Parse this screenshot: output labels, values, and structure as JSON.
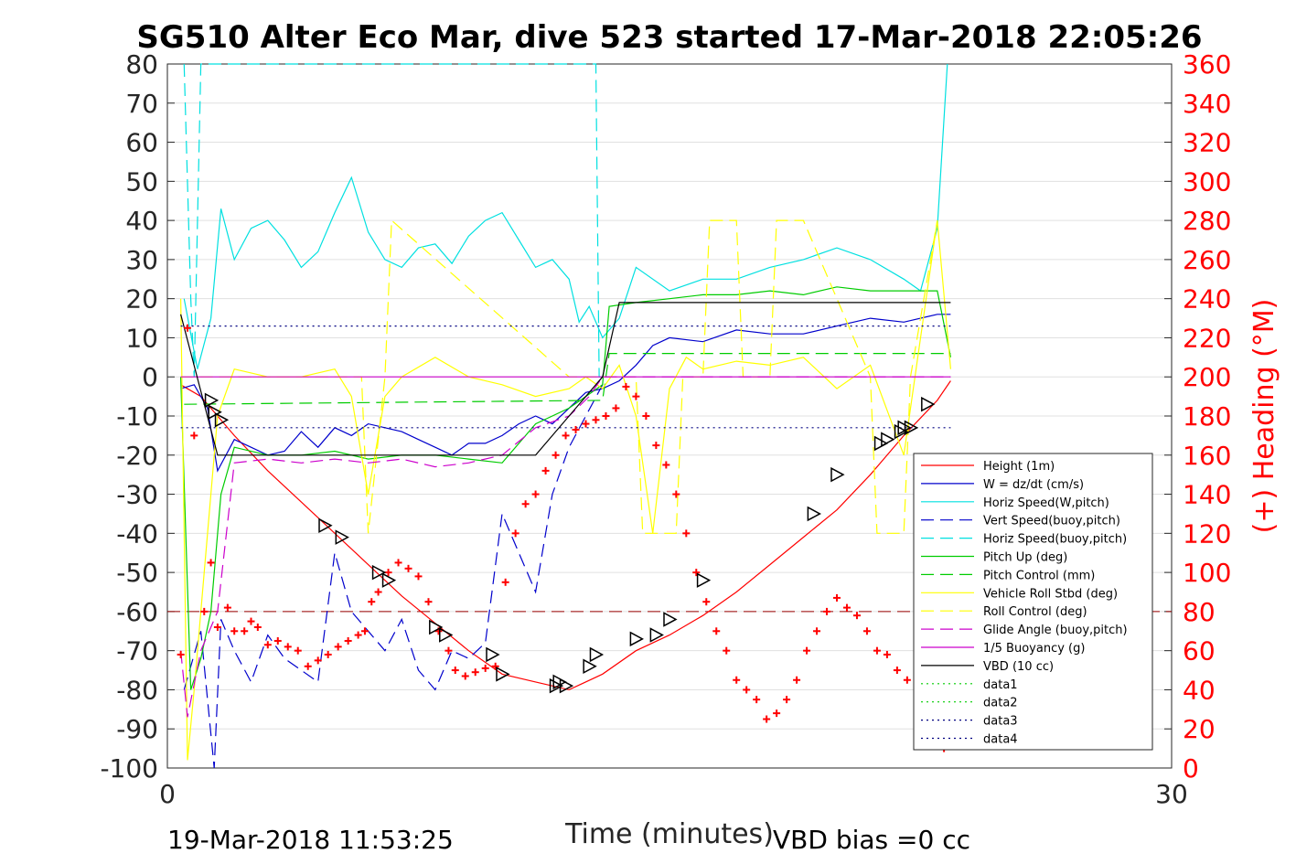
{
  "chart_data": {
    "type": "line",
    "title": "SG510 Alter Eco Mar, dive 523 started 17-Mar-2018 22:05:26",
    "xlabel": "Time (minutes)",
    "ylabel": "",
    "ylabel_right": "(+) Heading (°M)",
    "xlim": [
      0,
      30
    ],
    "ylim": [
      -100,
      80
    ],
    "ylim_right": [
      0,
      360
    ],
    "x_ticks": [
      "0",
      "30"
    ],
    "y_ticks": [
      "80",
      "70",
      "60",
      "50",
      "40",
      "30",
      "20",
      "10",
      "0",
      "-10",
      "-20",
      "-30",
      "-40",
      "-50",
      "-60",
      "-70",
      "-80",
      "-90",
      "-100"
    ],
    "y_ticks_right": [
      "360",
      "340",
      "320",
      "300",
      "280",
      "260",
      "240",
      "220",
      "200",
      "180",
      "160",
      "140",
      "120",
      "100",
      "80",
      "60",
      "40",
      "20",
      "0"
    ],
    "grid": "horizontal",
    "legend_position": "lower-right",
    "footer_left": "19-Mar-2018 11:53:25",
    "footer_right": "VBD bias =0 cc",
    "colors": {
      "height": "#ff0000",
      "w": "#0000cc",
      "horiz": "#00e0e0",
      "pitch": "#00cc00",
      "roll": "#ffff00",
      "glide": "#cc00cc",
      "vbd": "#000000",
      "heading": "#ff0000",
      "grid": "#e0e0e0"
    },
    "series": [
      {
        "name": "Height (1m)",
        "color": "#ff0000",
        "style": "solid",
        "x": [
          0.4,
          1.0,
          1.5,
          2.0,
          3.0,
          4.0,
          5.0,
          6.0,
          7.0,
          8.0,
          9.0,
          10.0,
          11.0,
          12.0,
          13.0,
          14.0,
          15.0,
          16.0,
          17.0,
          18.0,
          19.0,
          20.0,
          21.0,
          22.0,
          23.0,
          23.4
        ],
        "y": [
          -2,
          -5,
          -10,
          -15,
          -24,
          -32,
          -40,
          -48,
          -56,
          -63,
          -70,
          -76,
          -78,
          -80,
          -76,
          -70,
          -66,
          -61,
          -55,
          -48,
          -41,
          -34,
          -25,
          -15,
          -6,
          -1
        ]
      },
      {
        "name": "W = dz/dt (cm/s)",
        "color": "#0000cc",
        "style": "solid",
        "x": [
          0.4,
          0.8,
          1.2,
          1.5,
          2.0,
          2.5,
          3.0,
          3.5,
          4.0,
          4.5,
          5.0,
          5.5,
          6.0,
          6.5,
          7.0,
          7.5,
          8.0,
          8.5,
          9.0,
          9.5,
          10.0,
          10.5,
          11.0,
          11.5,
          12.0,
          12.5,
          13.0,
          13.5,
          14.0,
          14.5,
          15.0,
          16.0,
          17.0,
          18.0,
          19.0,
          20.0,
          21.0,
          22.0,
          23.0,
          23.4
        ],
        "y": [
          -3,
          -2,
          -8,
          -24,
          -16,
          -18,
          -20,
          -19,
          -14,
          -18,
          -13,
          -15,
          -12,
          -13,
          -14,
          -16,
          -18,
          -20,
          -17,
          -17,
          -15,
          -12,
          -10,
          -12,
          -8,
          -4,
          -3,
          -1,
          3,
          8,
          10,
          9,
          12,
          11,
          11,
          13,
          15,
          14,
          16,
          16
        ]
      },
      {
        "name": "Horiz Speed(W,pitch)",
        "color": "#00e0e0",
        "style": "solid",
        "x": [
          0.5,
          0.9,
          1.3,
          1.6,
          2.0,
          2.5,
          3.0,
          3.5,
          4.0,
          4.5,
          5.0,
          5.5,
          6.0,
          6.5,
          7.0,
          7.5,
          8.0,
          8.5,
          9.0,
          9.5,
          10.0,
          10.5,
          11.0,
          11.5,
          12.0,
          12.3,
          12.6,
          13.0,
          13.5,
          14.0,
          15.0,
          16.0,
          17.0,
          18.0,
          19.0,
          20.0,
          21.0,
          22.0,
          22.5,
          23.0,
          23.3
        ],
        "y": [
          20,
          2,
          15,
          43,
          30,
          38,
          40,
          35,
          28,
          32,
          42,
          51,
          37,
          30,
          28,
          33,
          34,
          29,
          36,
          40,
          42,
          35,
          28,
          30,
          25,
          14,
          18,
          10,
          15,
          28,
          22,
          25,
          25,
          28,
          30,
          33,
          30,
          25,
          22,
          38,
          80
        ]
      },
      {
        "name": "Vert Speed(buoy,pitch)",
        "color": "#0000cc",
        "style": "dashed",
        "x": [
          0.5,
          1.0,
          1.4,
          1.6,
          2.0,
          2.5,
          3.0,
          3.5,
          4.0,
          4.5,
          5.0,
          5.5,
          6.0,
          6.5,
          7.0,
          7.5,
          8.0,
          8.5,
          9.0,
          9.5,
          10.0,
          10.5,
          11.0,
          11.5,
          12.0,
          12.5,
          13.0
        ],
        "y": [
          -80,
          -65,
          -100,
          -62,
          -70,
          -78,
          -66,
          -72,
          -75,
          -78,
          -45,
          -60,
          -65,
          -70,
          -62,
          -75,
          -80,
          -70,
          -72,
          -68,
          -35,
          -45,
          -55,
          -30,
          -18,
          -10,
          -2
        ]
      },
      {
        "name": "Horiz Speed(buoy,pitch)",
        "color": "#00e0e0",
        "style": "dashed",
        "x": [
          0.5,
          0.7,
          0.8,
          1.0,
          12.8,
          12.9,
          13.0
        ],
        "y": [
          80,
          20,
          0,
          80,
          80,
          0,
          0
        ]
      },
      {
        "name": "Pitch Up (deg)",
        "color": "#00cc00",
        "style": "solid",
        "x": [
          0.4,
          0.7,
          1.0,
          1.3,
          1.6,
          2.0,
          3.0,
          4.0,
          5.0,
          6.0,
          7.0,
          8.0,
          9.0,
          10.0,
          11.0,
          12.0,
          12.5,
          13.0,
          13.2,
          14.0,
          15.0,
          16.0,
          17.0,
          18.0,
          19.0,
          20.0,
          21.0,
          22.0,
          23.0,
          23.4
        ],
        "y": [
          0,
          -80,
          -72,
          -60,
          -30,
          -18,
          -20,
          -20,
          -19,
          -21,
          -20,
          -20,
          -21,
          -22,
          -12,
          -8,
          -5,
          -2,
          18,
          19,
          20,
          21,
          21,
          22,
          21,
          23,
          22,
          22,
          22,
          5
        ]
      },
      {
        "name": "Pitch Control (mm)",
        "color": "#00cc00",
        "style": "dashed",
        "x": [
          0.5,
          13.0,
          13.2,
          23.4
        ],
        "y": [
          -7,
          -6,
          6,
          6
        ]
      },
      {
        "name": "Vehicle Roll Stbd (deg)",
        "color": "#ffff00",
        "style": "solid",
        "x": [
          0.4,
          0.6,
          0.8,
          1.0,
          1.5,
          2.0,
          3.0,
          4.0,
          5.0,
          5.5,
          6.0,
          6.5,
          7.0,
          8.0,
          9.0,
          10.0,
          11.0,
          12.0,
          12.5,
          13.0,
          13.5,
          14.0,
          14.5,
          15.0,
          15.5,
          16.0,
          17.0,
          18.0,
          19.0,
          20.0,
          21.0,
          22.0,
          23.0,
          23.4
        ],
        "y": [
          20,
          -98,
          -80,
          -60,
          -10,
          2,
          0,
          0,
          2,
          -5,
          -30,
          -5,
          0,
          5,
          0,
          -2,
          -5,
          -3,
          0,
          -3,
          3,
          -10,
          -40,
          -3,
          5,
          2,
          4,
          3,
          5,
          -3,
          3,
          -20,
          40,
          2
        ]
      },
      {
        "name": "Roll Control (deg)",
        "color": "#ffff00",
        "style": "dashed",
        "x": [
          0.4,
          5.8,
          6.0,
          6.5,
          6.7,
          12.0,
          14.0,
          14.2,
          15.2,
          15.4,
          16.0,
          16.2,
          17.0,
          17.2,
          18.0,
          18.2,
          19.0,
          21.0,
          21.2,
          22.0,
          22.2,
          23.0
        ],
        "y": [
          0,
          0,
          -40,
          0,
          40,
          0,
          0,
          -40,
          -40,
          0,
          0,
          40,
          40,
          0,
          0,
          40,
          40,
          0,
          -40,
          -40,
          0,
          40
        ]
      },
      {
        "name": "Glide Angle (buoy,pitch)",
        "color": "#cc00cc",
        "style": "dashed",
        "x": [
          0.4,
          0.6,
          1.0,
          1.5,
          2.0,
          3.0,
          4.0,
          5.0,
          6.0,
          7.0,
          8.0,
          9.0,
          10.0,
          11.0,
          12.0,
          12.6,
          13.0,
          23.4
        ],
        "y": [
          -70,
          -87,
          -70,
          -60,
          -22,
          -21,
          -22,
          -21,
          -22,
          -21,
          -23,
          -22,
          -20,
          -13,
          -10,
          -5,
          0,
          0
        ]
      },
      {
        "name": "1/5 Buoyancy (g)",
        "color": "#cc00cc",
        "style": "solid",
        "x": [
          0.4,
          13.0,
          23.4
        ],
        "y": [
          0,
          0,
          0
        ]
      },
      {
        "name": "VBD (10 cc)",
        "color": "#000000",
        "style": "solid",
        "x": [
          0.4,
          1.5,
          9.5,
          11.0,
          13.0,
          13.5,
          23.4
        ],
        "y": [
          16,
          -20,
          -20,
          -20,
          0,
          19,
          19
        ]
      },
      {
        "name": "data1",
        "color": "#00cc00",
        "style": "dotted",
        "x": [],
        "y": []
      },
      {
        "name": "data2",
        "color": "#00cc00",
        "style": "dotted",
        "x": [],
        "y": []
      },
      {
        "name": "data3",
        "color": "#000080",
        "style": "dotted",
        "x": [
          0.4,
          23.4
        ],
        "y": [
          13,
          13
        ]
      },
      {
        "name": "data4",
        "color": "#000080",
        "style": "dotted",
        "x": [
          0.4,
          23.4
        ],
        "y": [
          -13,
          -13
        ]
      }
    ],
    "reference_line": {
      "y": -60,
      "color": "#990000",
      "style": "dashed"
    },
    "heading_points": {
      "axis": "right",
      "x": [
        0.4,
        0.6,
        0.8,
        1.1,
        1.3,
        1.5,
        1.8,
        2.0,
        2.3,
        2.5,
        2.7,
        3.0,
        3.3,
        3.6,
        3.9,
        4.2,
        4.5,
        4.8,
        5.1,
        5.4,
        5.7,
        5.9,
        6.1,
        6.3,
        6.6,
        6.9,
        7.2,
        7.5,
        7.8,
        8.1,
        8.4,
        8.6,
        8.9,
        9.2,
        9.5,
        9.8,
        10.1,
        10.4,
        10.7,
        11.0,
        11.3,
        11.6,
        11.9,
        12.2,
        12.5,
        12.8,
        13.1,
        13.4,
        13.7,
        14.0,
        14.3,
        14.6,
        14.9,
        15.2,
        15.5,
        15.8,
        16.1,
        16.4,
        16.7,
        17.0,
        17.3,
        17.6,
        17.9,
        18.2,
        18.5,
        18.8,
        19.1,
        19.4,
        19.7,
        20.0,
        20.3,
        20.6,
        20.9,
        21.2,
        21.5,
        21.8,
        22.1,
        22.4,
        22.7,
        23.0,
        23.2
      ],
      "y": [
        58,
        225,
        170,
        80,
        105,
        72,
        82,
        70,
        70,
        75,
        72,
        63,
        65,
        62,
        60,
        52,
        55,
        58,
        62,
        65,
        68,
        70,
        85,
        90,
        100,
        105,
        102,
        98,
        85,
        70,
        60,
        50,
        47,
        49,
        51,
        52,
        95,
        120,
        135,
        140,
        152,
        160,
        170,
        173,
        176,
        178,
        180,
        184,
        195,
        190,
        180,
        165,
        155,
        140,
        120,
        100,
        85,
        70,
        60,
        45,
        40,
        35,
        25,
        28,
        35,
        45,
        60,
        70,
        80,
        87,
        82,
        78,
        70,
        60,
        58,
        50,
        45,
        35,
        25,
        15,
        10
      ]
    },
    "markers": {
      "x": [
        1.3,
        1.4,
        1.6,
        4.7,
        5.2,
        6.3,
        6.6,
        8.0,
        8.3,
        9.7,
        10.0,
        11.6,
        11.7,
        11.9,
        12.6,
        12.8,
        14.0,
        14.6,
        15.0,
        16.0,
        19.3,
        20.0,
        21.3,
        21.5,
        21.9,
        22.0,
        22.2,
        22.7
      ],
      "y": [
        -6,
        -9,
        -11,
        -38,
        -41,
        -50,
        -52,
        -64,
        -66,
        -71,
        -76,
        -79,
        -78,
        -79,
        -74,
        -71,
        -67,
        -66,
        -62,
        -52,
        -35,
        -25,
        -17,
        -16,
        -14,
        -13,
        -13,
        -7
      ]
    }
  }
}
